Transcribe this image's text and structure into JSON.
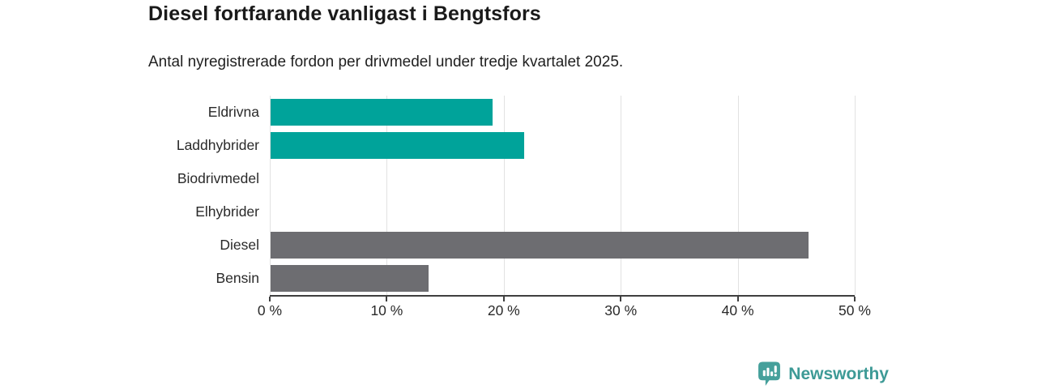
{
  "header": {
    "title": "Diesel fortfarande vanligast i Bengtsfors",
    "subtitle": "Antal nyregistrerade fordon per drivmedel under tredje kvartalet 2025."
  },
  "chart_data": {
    "type": "bar",
    "orientation": "horizontal",
    "title": "Diesel fortfarande vanligast i Bengtsfors",
    "subtitle": "Antal nyregistrerade fordon per drivmedel under tredje kvartalet 2025.",
    "categories": [
      "Eldrivna",
      "Laddhybrider",
      "Biodrivmedel",
      "Elhybrider",
      "Diesel",
      "Bensin"
    ],
    "values": [
      19,
      21.7,
      0,
      0,
      46,
      13.5
    ],
    "unit": "%",
    "bar_colors": [
      "#00a39a",
      "#00a39a",
      "#00a39a",
      "#00a39a",
      "#6d6d71",
      "#6d6d71"
    ],
    "xlim": [
      0,
      50
    ],
    "x_ticks": [
      0,
      10,
      20,
      30,
      40,
      50
    ],
    "x_tick_labels": [
      "0 %",
      "10 %",
      "20 %",
      "30 %",
      "40 %",
      "50 %"
    ],
    "grid": "vertical-gridlines",
    "legend": "none",
    "xlabel": "",
    "ylabel": ""
  },
  "colors": {
    "teal_bar": "#00a39a",
    "gray_bar": "#6d6d71",
    "gridline": "#e2e2e2",
    "axis": "#3f3f3f",
    "brand_teal": "#3d9a96"
  },
  "footer": {
    "brand": "Newsworthy"
  }
}
